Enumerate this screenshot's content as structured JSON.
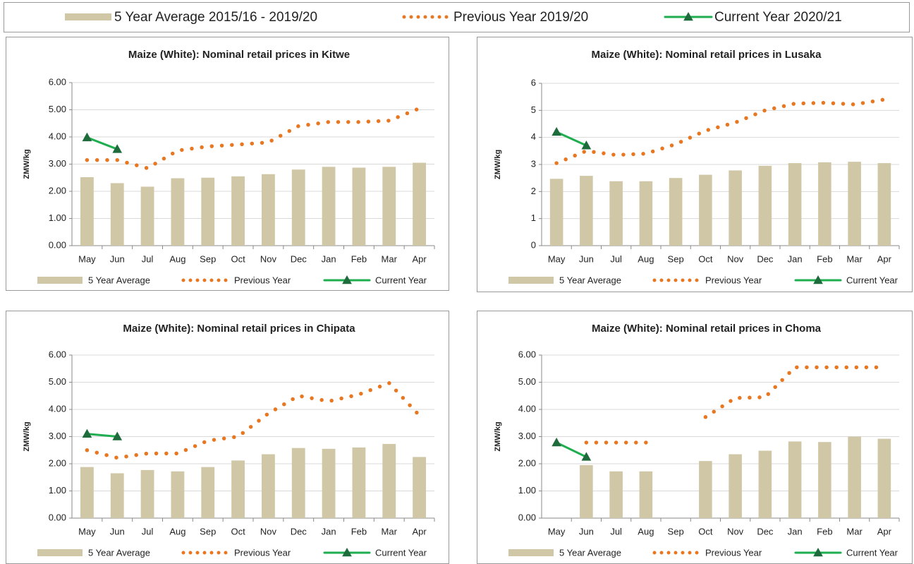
{
  "legend": {
    "items": [
      {
        "name": "5 Year Average 2015/16 - 2019/20",
        "type": "bar",
        "color": "#d0c7a6"
      },
      {
        "name": "Previous Year 2019/20",
        "type": "line",
        "style": "dotted",
        "color": "#e87722"
      },
      {
        "name": "Current Year 2020/21",
        "type": "line",
        "style": "solid",
        "marker": "triangle",
        "color": "#1fae4f"
      }
    ]
  },
  "chart_data": [
    {
      "type": "combo",
      "title": "Maize (White): Nominal retail prices in Kitwe",
      "y_label": "ZMW/kg",
      "categories": [
        "May",
        "Jun",
        "Jul",
        "Aug",
        "Sep",
        "Oct",
        "Nov",
        "Dec",
        "Jan",
        "Feb",
        "Mar",
        "Apr"
      ],
      "ylim": [
        0,
        6
      ],
      "grid": true,
      "yticks": [
        {
          "value": 0,
          "label": "0.00"
        },
        {
          "value": 1,
          "label": "1.00"
        },
        {
          "value": 2,
          "label": "2.00"
        },
        {
          "value": 3,
          "label": "3.00"
        },
        {
          "value": 4,
          "label": "4.00"
        },
        {
          "value": 5,
          "label": "5.00"
        },
        {
          "value": 6,
          "label": "6.00"
        }
      ],
      "series": [
        {
          "name": "5 Year Average",
          "type": "bar",
          "color": "#d0c7a6",
          "values": [
            2.52,
            2.3,
            2.17,
            2.48,
            2.5,
            2.55,
            2.63,
            2.8,
            2.9,
            2.87,
            2.9,
            3.05
          ]
        },
        {
          "name": "Previous Year",
          "type": "line",
          "style": "dotted",
          "color": "#e87722",
          "values": [
            3.15,
            3.15,
            2.85,
            3.5,
            3.65,
            3.72,
            3.8,
            4.4,
            4.55,
            4.55,
            4.6,
            5.05
          ]
        },
        {
          "name": "Current Year",
          "type": "line",
          "style": "solid",
          "marker": "triangle",
          "color": "#1fae4f",
          "values": [
            3.98,
            3.55,
            null,
            null,
            null,
            null,
            null,
            null,
            null,
            null,
            null,
            null
          ]
        }
      ]
    },
    {
      "type": "combo",
      "title": "Maize (White): Nominal retail prices in Lusaka",
      "y_label": "ZMW/kg",
      "categories": [
        "May",
        "Jun",
        "Jul",
        "Aug",
        "Sep",
        "Oct",
        "Nov",
        "Dec",
        "Jan",
        "Feb",
        "Mar",
        "Apr"
      ],
      "ylim": [
        0,
        6
      ],
      "grid": true,
      "yticks": [
        0,
        1,
        2,
        3,
        4,
        5,
        6
      ],
      "series": [
        {
          "name": "5 Year Average",
          "type": "bar",
          "color": "#d0c7a6",
          "values": [
            2.47,
            2.58,
            2.38,
            2.38,
            2.5,
            2.62,
            2.78,
            2.95,
            3.05,
            3.08,
            3.1,
            3.05
          ]
        },
        {
          "name": "Previous Year",
          "type": "line",
          "style": "dotted",
          "color": "#e87722",
          "values": [
            3.05,
            3.5,
            3.35,
            3.4,
            3.75,
            4.25,
            4.55,
            5.0,
            5.25,
            5.28,
            5.22,
            5.4
          ]
        },
        {
          "name": "Current Year",
          "type": "line",
          "style": "solid",
          "marker": "triangle",
          "color": "#1fae4f",
          "values": [
            4.2,
            3.7,
            null,
            null,
            null,
            null,
            null,
            null,
            null,
            null,
            null,
            null
          ]
        }
      ]
    },
    {
      "type": "combo",
      "title": "Maize (White): Nominal retail prices in Chipata",
      "y_label": "ZMW/kg",
      "categories": [
        "May",
        "Jun",
        "Jul",
        "Aug",
        "Sep",
        "Oct",
        "Nov",
        "Dec",
        "Jan",
        "Feb",
        "Mar",
        "Apr"
      ],
      "ylim": [
        0,
        6
      ],
      "grid": true,
      "yticks": [
        {
          "value": 0,
          "label": "0.00"
        },
        {
          "value": 1,
          "label": "1.00"
        },
        {
          "value": 2,
          "label": "2.00"
        },
        {
          "value": 3,
          "label": "3.00"
        },
        {
          "value": 4,
          "label": "4.00"
        },
        {
          "value": 5,
          "label": "5.00"
        },
        {
          "value": 6,
          "label": "6.00"
        }
      ],
      "series": [
        {
          "name": "5 Year Average",
          "type": "bar",
          "color": "#d0c7a6",
          "values": [
            1.88,
            1.65,
            1.77,
            1.72,
            1.88,
            2.12,
            2.35,
            2.58,
            2.55,
            2.6,
            2.73,
            2.25
          ]
        },
        {
          "name": "Previous Year",
          "type": "line",
          "style": "dotted",
          "color": "#e87722",
          "values": [
            2.5,
            2.22,
            2.38,
            2.38,
            2.85,
            3.0,
            3.85,
            4.5,
            4.3,
            4.55,
            4.97,
            3.78
          ]
        },
        {
          "name": "Current Year",
          "type": "line",
          "style": "solid",
          "marker": "triangle",
          "color": "#1fae4f",
          "values": [
            3.1,
            3.0,
            null,
            null,
            null,
            null,
            null,
            null,
            null,
            null,
            null,
            null
          ]
        }
      ]
    },
    {
      "type": "combo",
      "title": "Maize (White): Nominal retail prices in Choma",
      "y_label": "ZMW/kg",
      "categories": [
        "May",
        "Jun",
        "Jul",
        "Aug",
        "Sep",
        "Oct",
        "Nov",
        "Dec",
        "Jan",
        "Feb",
        "Mar",
        "Apr"
      ],
      "ylim": [
        0,
        6
      ],
      "grid": true,
      "yticks": [
        {
          "value": 0,
          "label": "0.00"
        },
        {
          "value": 1,
          "label": "1.00"
        },
        {
          "value": 2,
          "label": "2.00"
        },
        {
          "value": 3,
          "label": "3.00"
        },
        {
          "value": 4,
          "label": "4.00"
        },
        {
          "value": 5,
          "label": "5.00"
        },
        {
          "value": 6,
          "label": "6.00"
        }
      ],
      "series": [
        {
          "name": "5 Year Average",
          "type": "bar",
          "color": "#d0c7a6",
          "values": [
            null,
            1.95,
            1.72,
            1.72,
            null,
            2.1,
            2.35,
            2.48,
            2.82,
            2.8,
            3.0,
            2.92
          ]
        },
        {
          "name": "Previous Year",
          "type": "line",
          "style": "dotted",
          "color": "#e87722",
          "values": [
            null,
            2.78,
            2.78,
            2.78,
            null,
            3.72,
            4.42,
            4.45,
            5.55,
            5.55,
            5.55,
            5.55
          ]
        },
        {
          "name": "Current Year",
          "type": "line",
          "style": "solid",
          "marker": "triangle",
          "color": "#1fae4f",
          "values": [
            2.78,
            2.25,
            null,
            null,
            null,
            null,
            null,
            null,
            null,
            null,
            null,
            null
          ]
        }
      ]
    }
  ]
}
